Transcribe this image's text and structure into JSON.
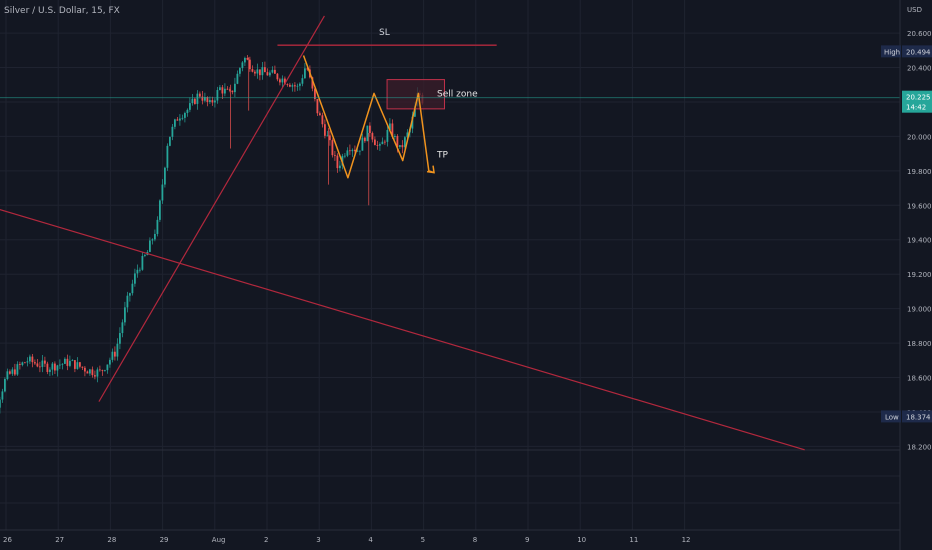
{
  "header": {
    "title": "Silver / U.S. Dollar, 15, FX"
  },
  "price_axis": {
    "currency": "USD",
    "high_label": "High",
    "high_value": "20.494",
    "low_label": "Low",
    "low_value": "18.374",
    "last_value": "20.225",
    "countdown": "14:42"
  },
  "colors": {
    "background": "#131722",
    "up": "#26a69a",
    "down": "#ef5350",
    "trendline": "#b2283d",
    "pattern": "#f0931e",
    "zone_border": "#c2314a",
    "zone_fill": "#3b1d2a",
    "last_price": "#26a69a",
    "label_bg": "#1e2a4a"
  },
  "chart_data": {
    "type": "candlestick",
    "symbol": "Silver / U.S. Dollar",
    "interval": "15",
    "exchange": "FX",
    "y_ticks": [
      18.2,
      18.4,
      18.6,
      18.8,
      19.0,
      19.2,
      19.4,
      19.6,
      19.8,
      20.0,
      20.2,
      20.4,
      20.6
    ],
    "y_tick_labels": [
      "18.200",
      "18.400",
      "18.600",
      "18.800",
      "19.000",
      "19.200",
      "19.400",
      "19.600",
      "19.800",
      "20.000",
      "",
      "20.400",
      "20.600"
    ],
    "ylim": [
      18.15,
      20.74
    ],
    "x_ticks": [
      {
        "day": 0,
        "label": "26"
      },
      {
        "day": 1,
        "label": "27"
      },
      {
        "day": 2,
        "label": "28"
      },
      {
        "day": 3,
        "label": "29"
      },
      {
        "day": 4,
        "label": "Aug"
      },
      {
        "day": 5,
        "label": "2"
      },
      {
        "day": 6,
        "label": "3"
      },
      {
        "day": 7,
        "label": "4"
      },
      {
        "day": 8,
        "label": "5"
      },
      {
        "day": 9,
        "label": "8"
      },
      {
        "day": 10,
        "label": "9"
      },
      {
        "day": 11,
        "label": "10"
      },
      {
        "day": 12,
        "label": "11"
      },
      {
        "day": 13,
        "label": "12"
      }
    ],
    "price_path": [
      [
        -0.5,
        18.45
      ],
      [
        -0.2,
        18.42
      ],
      [
        0.0,
        18.6
      ],
      [
        0.4,
        18.7
      ],
      [
        0.8,
        18.66
      ],
      [
        1.2,
        18.69
      ],
      [
        1.6,
        18.64
      ],
      [
        1.8,
        18.63
      ],
      [
        2.1,
        18.75
      ],
      [
        2.3,
        19.02
      ],
      [
        2.5,
        19.22
      ],
      [
        2.7,
        19.32
      ],
      [
        2.9,
        19.49
      ],
      [
        3.1,
        19.98
      ],
      [
        3.3,
        20.12
      ],
      [
        3.5,
        20.16
      ],
      [
        3.7,
        20.25
      ],
      [
        3.9,
        20.18
      ],
      [
        4.1,
        20.28
      ],
      [
        4.3,
        20.24
      ],
      [
        4.55,
        20.46
      ],
      [
        4.8,
        20.38
      ],
      [
        5.1,
        20.36
      ],
      [
        5.4,
        20.32
      ],
      [
        5.6,
        20.28
      ],
      [
        5.75,
        20.42
      ],
      [
        5.95,
        20.16
      ],
      [
        6.15,
        20.0
      ],
      [
        6.35,
        19.82
      ],
      [
        6.55,
        19.95
      ],
      [
        6.75,
        19.92
      ],
      [
        6.95,
        20.05
      ],
      [
        7.15,
        19.92
      ],
      [
        7.35,
        20.05
      ],
      [
        7.55,
        19.92
      ],
      [
        7.75,
        20.05
      ],
      [
        7.9,
        20.26
      ],
      [
        8.0,
        20.2
      ]
    ],
    "high": 20.494,
    "low": 18.374,
    "last_price": 20.225,
    "annotations": [
      {
        "type": "horizontal_line",
        "label": "SL",
        "price": 20.53,
        "from_day": 5.2,
        "to_day": 9.4
      },
      {
        "type": "rectangle",
        "label": "Sell zone",
        "price_top": 20.33,
        "price_bottom": 20.16,
        "from_day": 7.3,
        "to_day": 8.4
      },
      {
        "type": "pattern_path",
        "label": "TP",
        "points": [
          [
            5.7,
            20.47
          ],
          [
            6.55,
            19.76
          ],
          [
            7.05,
            20.25
          ],
          [
            7.6,
            19.86
          ],
          [
            7.9,
            20.25
          ],
          [
            8.1,
            19.8
          ],
          [
            8.2,
            19.79
          ]
        ]
      },
      {
        "type": "trendline",
        "points": [
          [
            1.78,
            18.46
          ],
          [
            6.1,
            20.7
          ]
        ]
      },
      {
        "type": "trendline",
        "points": [
          [
            -0.5,
            19.61
          ],
          [
            15.3,
            18.18
          ]
        ]
      }
    ]
  }
}
